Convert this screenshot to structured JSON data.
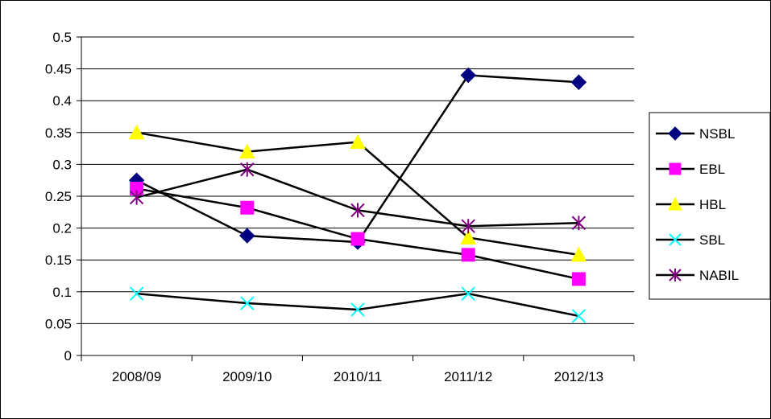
{
  "chart_data": {
    "type": "line",
    "categories": [
      "2008/09",
      "2009/10",
      "2010/11",
      "2011/12",
      "2012/13"
    ],
    "ylim": [
      0,
      0.5
    ],
    "yticks": [
      "0",
      "0.05",
      "0.1",
      "0.15",
      "0.2",
      "0.25",
      "0.3",
      "0.35",
      "0.4",
      "0.45",
      "0.5"
    ],
    "grid": true,
    "legend_position": "right",
    "series": [
      {
        "name": "NSBL",
        "values": [
          0.275,
          0.188,
          0.178,
          0.44,
          0.429
        ],
        "marker": "diamond",
        "color": "#000080"
      },
      {
        "name": "EBL",
        "values": [
          0.262,
          0.232,
          0.183,
          0.158,
          0.12
        ],
        "marker": "square",
        "color": "#FF00FF"
      },
      {
        "name": "HBL",
        "values": [
          0.35,
          0.32,
          0.335,
          0.185,
          0.158
        ],
        "marker": "triangle",
        "color": "#FFFF00"
      },
      {
        "name": "SBL",
        "values": [
          0.097,
          0.082,
          0.072,
          0.097,
          0.062
        ],
        "marker": "x",
        "color": "#00FFFF"
      },
      {
        "name": "NABIL",
        "values": [
          0.248,
          0.292,
          0.228,
          0.203,
          0.208
        ],
        "marker": "star",
        "color": "#800080"
      }
    ]
  }
}
